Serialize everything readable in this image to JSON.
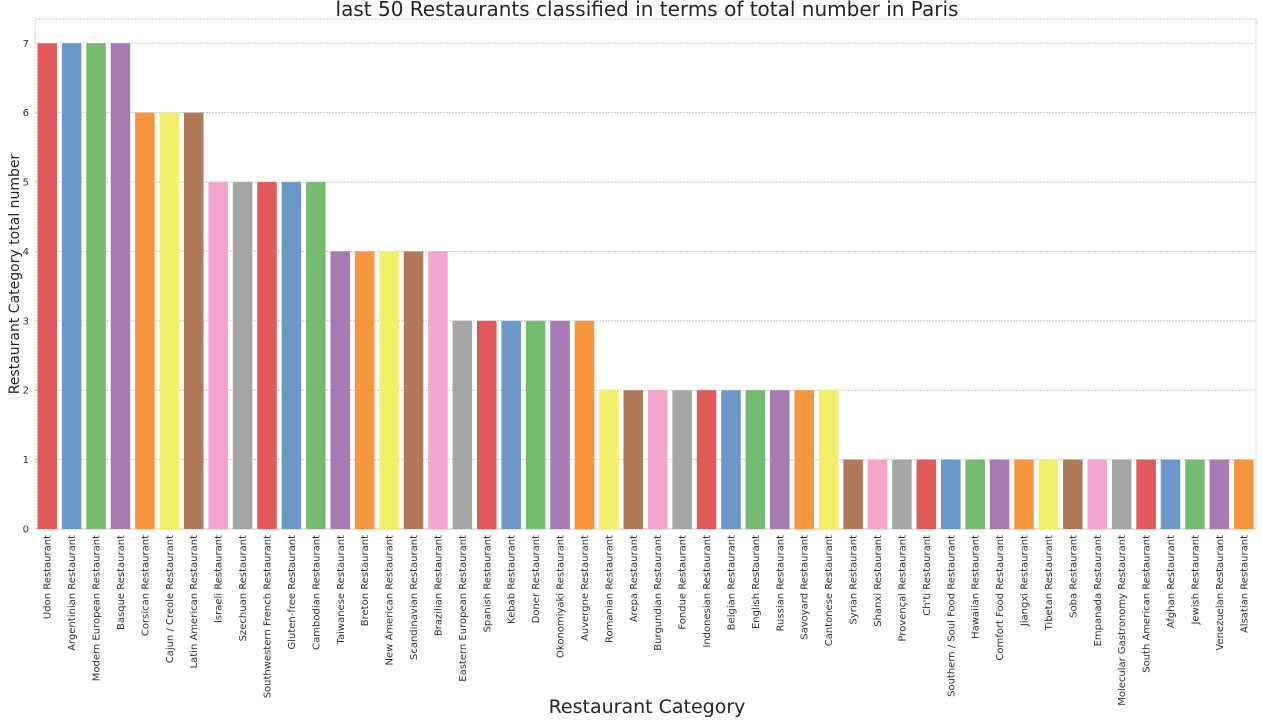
{
  "chart_data": {
    "type": "bar",
    "title": "last 50 Restaurants classified in terms of total number in Paris",
    "xlabel": "Restaurant Category",
    "ylabel": "Restaurant  Category total number",
    "ylim": [
      0,
      7.35
    ],
    "yticks": [
      "0",
      "1",
      "2",
      "3",
      "4",
      "5",
      "6",
      "7"
    ],
    "grid": true,
    "categories": [
      "Udon Restaurant",
      "Argentinian Restaurant",
      "Modern European Restaurant",
      "Basque Restaurant",
      "Corsican Restaurant",
      "Cajun / Creole Restaurant",
      "Latin American Restaurant",
      "Israeli Restaurant",
      "Szechuan Restaurant",
      "Southwestern French Restaurant",
      "Gluten-free Restaurant",
      "Cambodian Restaurant",
      "Taiwanese Restaurant",
      "Breton Restaurant",
      "New American Restaurant",
      "Scandinavian Restaurant",
      "Brazilian Restaurant",
      "Eastern European Restaurant",
      "Spanish Restaurant",
      "Kebab Restaurant",
      "Doner Restaurant",
      "Okonomiyaki Restaurant",
      "Auvergne Restaurant",
      "Romanian Restaurant",
      "Arepa Restaurant",
      "Burgundian Restaurant",
      "Fondue Restaurant",
      "Indonesian Restaurant",
      "Belgian Restaurant",
      "English Restaurant",
      "Russian Restaurant",
      "Savoyard Restaurant",
      "Cantonese Restaurant",
      "Syrian Restaurant",
      "Shanxi Restaurant",
      "Provençal Restaurant",
      "Ch'ti Restaurant",
      "Southern / Soul Food Restaurant",
      "Hawaiian Restaurant",
      "Comfort Food Restaurant",
      "Jiangxi Restaurant",
      "Tibetan Restaurant",
      "Soba Restaurant",
      "Empanada Restaurant",
      "Molecular Gastronomy Restaurant",
      "South American Restaurant",
      "Afghan Restaurant",
      "Jewish Restaurant",
      "Venezuelan Restaurant",
      "Alsatian Restaurant"
    ],
    "values": [
      7,
      7,
      7,
      7,
      6,
      6,
      6,
      5,
      5,
      5,
      5,
      5,
      4,
      4,
      4,
      4,
      4,
      3,
      3,
      3,
      3,
      3,
      3,
      2,
      2,
      2,
      2,
      2,
      2,
      2,
      2,
      2,
      2,
      1,
      1,
      1,
      1,
      1,
      1,
      1,
      1,
      1,
      1,
      1,
      1,
      1,
      1,
      1,
      1,
      1
    ],
    "palette": [
      "#e05a5b",
      "#6b98c8",
      "#74bb70",
      "#a77ab3",
      "#f7953f",
      "#f2f06a",
      "#b0795a",
      "#f2a6cc",
      "#a6a6a6"
    ]
  }
}
